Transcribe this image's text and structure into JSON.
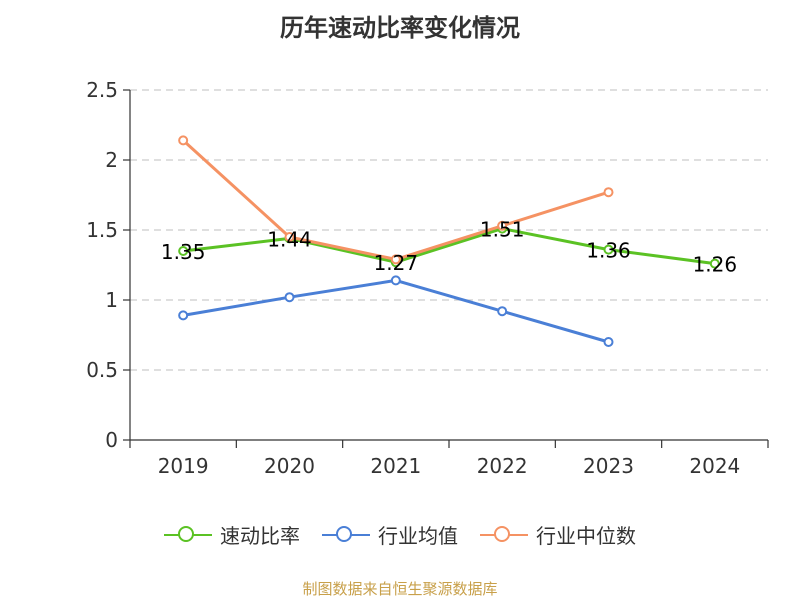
{
  "chart_data": {
    "type": "line",
    "title": "历年速动比率变化情况",
    "categories": [
      "2019",
      "2020",
      "2021",
      "2022",
      "2023",
      "2024"
    ],
    "yticks": [
      "0",
      "0.5",
      "1",
      "1.5",
      "2",
      "2.5"
    ],
    "ylim": [
      0,
      2.5
    ],
    "grid": true,
    "legend_position": "bottom",
    "series": [
      {
        "name": "速动比率",
        "color": "#5bc224",
        "values": [
          1.35,
          1.44,
          1.27,
          1.51,
          1.36,
          1.26
        ],
        "labels": [
          "1.35",
          "1.44",
          "1.27",
          "1.51",
          "1.36",
          "1.26"
        ]
      },
      {
        "name": "行业均值",
        "color": "#4a7fd6",
        "values": [
          0.89,
          1.02,
          1.14,
          0.92,
          0.7,
          null
        ]
      },
      {
        "name": "行业中位数",
        "color": "#f59263",
        "values": [
          2.14,
          1.45,
          1.29,
          1.53,
          1.77,
          null
        ]
      }
    ]
  },
  "source": "制图数据来自恒生聚源数据库"
}
